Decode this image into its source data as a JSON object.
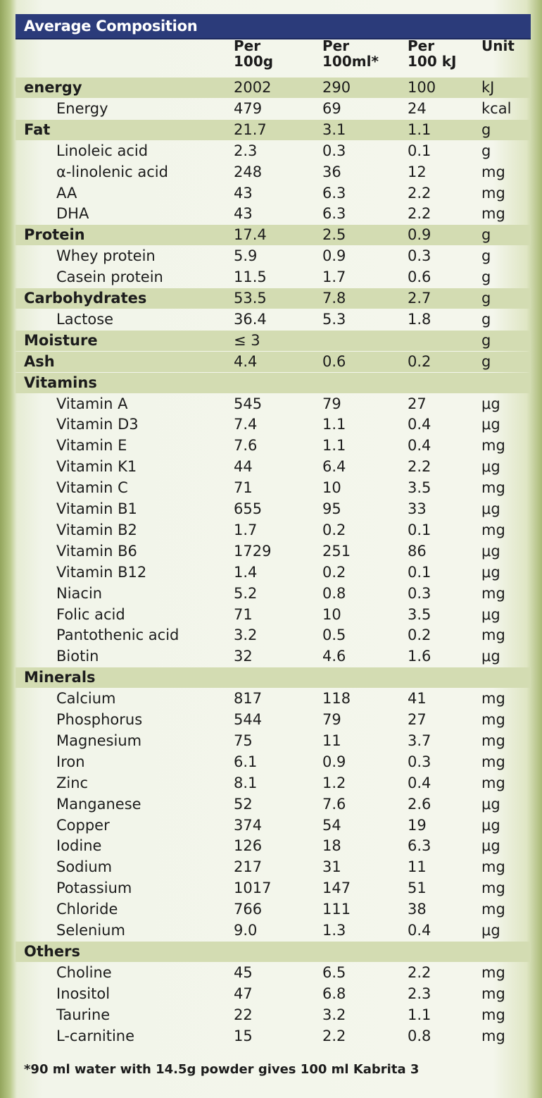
{
  "title": "Average Composition",
  "headers": {
    "per100g": "Per\n100g",
    "per100ml": "Per\n100ml*",
    "per100kj": "Per\n100 kJ",
    "unit": "Unit"
  },
  "rows": [
    {
      "name": "energy",
      "bold": true,
      "band": true,
      "v1": "2002",
      "v2": "290",
      "v3": "100",
      "unit": "kJ"
    },
    {
      "name": "Energy",
      "indent": true,
      "v1": "479",
      "v2": "69",
      "v3": "24",
      "unit": "kcal"
    },
    {
      "name": "Fat",
      "bold": true,
      "band": true,
      "v1": "21.7",
      "v2": "3.1",
      "v3": "1.1",
      "unit": "g"
    },
    {
      "name": "Linoleic acid",
      "indent": true,
      "v1": "2.3",
      "v2": "0.3",
      "v3": "0.1",
      "unit": "g"
    },
    {
      "name": "α-linolenic acid",
      "indent": true,
      "v1": "248",
      "v2": "36",
      "v3": "12",
      "unit": "mg"
    },
    {
      "name": "AA",
      "indent": true,
      "v1": "43",
      "v2": "6.3",
      "v3": "2.2",
      "unit": "mg"
    },
    {
      "name": "DHA",
      "indent": true,
      "v1": "43",
      "v2": "6.3",
      "v3": "2.2",
      "unit": "mg"
    },
    {
      "name": "Protein",
      "bold": true,
      "band": true,
      "v1": "17.4",
      "v2": "2.5",
      "v3": "0.9",
      "unit": "g"
    },
    {
      "name": "Whey protein",
      "indent": true,
      "v1": "5.9",
      "v2": "0.9",
      "v3": "0.3",
      "unit": "g"
    },
    {
      "name": "Casein protein",
      "indent": true,
      "v1": "11.5",
      "v2": "1.7",
      "v3": "0.6",
      "unit": "g"
    },
    {
      "name": "Carbohydrates",
      "bold": true,
      "band": true,
      "v1": "53.5",
      "v2": "7.8",
      "v3": "2.7",
      "unit": "g"
    },
    {
      "name": "Lactose",
      "indent": true,
      "v1": "36.4",
      "v2": "5.3",
      "v3": "1.8",
      "unit": "g"
    },
    {
      "name": "Moisture",
      "bold": true,
      "band": true,
      "v1": "≤ 3",
      "v2": "",
      "v3": "",
      "unit": "g"
    },
    {
      "name": "Ash",
      "bold": true,
      "band": true,
      "v1": "4.4",
      "v2": "0.6",
      "v3": "0.2",
      "unit": "g"
    },
    {
      "name": "Vitamins",
      "bold": true,
      "band": true,
      "v1": "",
      "v2": "",
      "v3": "",
      "unit": ""
    },
    {
      "name": "Vitamin A",
      "indent": true,
      "v1": "545",
      "v2": "79",
      "v3": "27",
      "unit": "μg"
    },
    {
      "name": "Vitamin D3",
      "indent": true,
      "v1": "7.4",
      "v2": "1.1",
      "v3": "0.4",
      "unit": "μg"
    },
    {
      "name": "Vitamin E",
      "indent": true,
      "v1": "7.6",
      "v2": "1.1",
      "v3": "0.4",
      "unit": "mg"
    },
    {
      "name": "Vitamin K1",
      "indent": true,
      "v1": "44",
      "v2": "6.4",
      "v3": "2.2",
      "unit": "μg"
    },
    {
      "name": "Vitamin C",
      "indent": true,
      "v1": "71",
      "v2": "10",
      "v3": "3.5",
      "unit": "mg"
    },
    {
      "name": "Vitamin B1",
      "indent": true,
      "v1": "655",
      "v2": "95",
      "v3": "33",
      "unit": "μg"
    },
    {
      "name": "Vitamin B2",
      "indent": true,
      "v1": "1.7",
      "v2": "0.2",
      "v3": "0.1",
      "unit": "mg"
    },
    {
      "name": "Vitamin B6",
      "indent": true,
      "v1": "1729",
      "v2": "251",
      "v3": "86",
      "unit": "μg"
    },
    {
      "name": "Vitamin B12",
      "indent": true,
      "v1": "1.4",
      "v2": "0.2",
      "v3": "0.1",
      "unit": "μg"
    },
    {
      "name": "Niacin",
      "indent": true,
      "v1": "5.2",
      "v2": "0.8",
      "v3": "0.3",
      "unit": "mg"
    },
    {
      "name": "Folic acid",
      "indent": true,
      "v1": "71",
      "v2": "10",
      "v3": "3.5",
      "unit": "μg"
    },
    {
      "name": "Pantothenic acid",
      "indent": true,
      "v1": "3.2",
      "v2": "0.5",
      "v3": "0.2",
      "unit": "mg"
    },
    {
      "name": "Biotin",
      "indent": true,
      "v1": "32",
      "v2": "4.6",
      "v3": "1.6",
      "unit": "μg"
    },
    {
      "name": "Minerals",
      "bold": true,
      "band": true,
      "v1": "",
      "v2": "",
      "v3": "",
      "unit": ""
    },
    {
      "name": "Calcium",
      "indent": true,
      "v1": "817",
      "v2": "118",
      "v3": "41",
      "unit": "mg"
    },
    {
      "name": "Phosphorus",
      "indent": true,
      "v1": "544",
      "v2": "79",
      "v3": "27",
      "unit": "mg"
    },
    {
      "name": "Magnesium",
      "indent": true,
      "v1": "75",
      "v2": "11",
      "v3": "3.7",
      "unit": "mg"
    },
    {
      "name": "Iron",
      "indent": true,
      "v1": "6.1",
      "v2": "0.9",
      "v3": "0.3",
      "unit": "mg"
    },
    {
      "name": "Zinc",
      "indent": true,
      "v1": "8.1",
      "v2": "1.2",
      "v3": "0.4",
      "unit": "mg"
    },
    {
      "name": "Manganese",
      "indent": true,
      "v1": "52",
      "v2": "7.6",
      "v3": "2.6",
      "unit": "μg"
    },
    {
      "name": "Copper",
      "indent": true,
      "v1": "374",
      "v2": "54",
      "v3": "19",
      "unit": "μg"
    },
    {
      "name": "Iodine",
      "indent": true,
      "v1": "126",
      "v2": "18",
      "v3": "6.3",
      "unit": "μg"
    },
    {
      "name": "Sodium",
      "indent": true,
      "v1": "217",
      "v2": "31",
      "v3": "11",
      "unit": "mg"
    },
    {
      "name": "Potassium",
      "indent": true,
      "v1": "1017",
      "v2": "147",
      "v3": "51",
      "unit": "mg"
    },
    {
      "name": "Chloride",
      "indent": true,
      "v1": "766",
      "v2": "111",
      "v3": "38",
      "unit": "mg"
    },
    {
      "name": "Selenium",
      "indent": true,
      "v1": "9.0",
      "v2": "1.3",
      "v3": "0.4",
      "unit": "μg"
    },
    {
      "name": "Others",
      "bold": true,
      "band": true,
      "v1": "",
      "v2": "",
      "v3": "",
      "unit": ""
    },
    {
      "name": "Choline",
      "indent": true,
      "v1": "45",
      "v2": "6.5",
      "v3": "2.2",
      "unit": "mg"
    },
    {
      "name": "Inositol",
      "indent": true,
      "v1": "47",
      "v2": "6.8",
      "v3": "2.3",
      "unit": "mg"
    },
    {
      "name": "Taurine",
      "indent": true,
      "v1": "22",
      "v2": "3.2",
      "v3": "1.1",
      "unit": "mg"
    },
    {
      "name": "L-carnitine",
      "indent": true,
      "v1": "15",
      "v2": "2.2",
      "v3": "0.8",
      "unit": "mg"
    }
  ],
  "footnote": "*90 ml water with 14.5g powder gives 100 ml Kabrita 3",
  "colors": {
    "title_bar": "#2b3b7a",
    "band": "#d3dcb2",
    "frame_green": "#93a55c"
  }
}
